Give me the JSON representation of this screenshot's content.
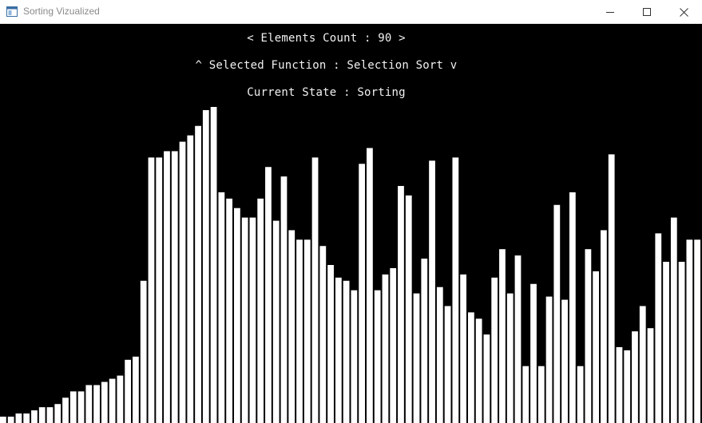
{
  "window": {
    "title": "Sorting Vizualized",
    "icon": "app-window-icon",
    "controls": [
      "minimize-icon",
      "maximize-icon",
      "close-icon"
    ]
  },
  "hud": {
    "elements_count": "< Elements Count : 90 >",
    "selected_function": "^ Selected Function : Selection Sort v",
    "current_state": "Current State : Sorting"
  },
  "colors": {
    "background": "#000000",
    "bar": "#ffffff",
    "text": "#f2f2f2"
  },
  "chart_data": {
    "type": "bar",
    "element_count": 90,
    "value_max": 100,
    "values": [
      2,
      2,
      3,
      3,
      4,
      5,
      5,
      6,
      8,
      10,
      10,
      12,
      12,
      13,
      14,
      15,
      20,
      21,
      45,
      84,
      84,
      86,
      86,
      89,
      91,
      94,
      99,
      100,
      73,
      71,
      68,
      65,
      65,
      71,
      81,
      64,
      78,
      61,
      58,
      58,
      84,
      56,
      50,
      46,
      45,
      42,
      82,
      87,
      42,
      47,
      49,
      75,
      72,
      41,
      52,
      83,
      43,
      37,
      84,
      47,
      35,
      33,
      28,
      46,
      55,
      41,
      53,
      18,
      44,
      18,
      40,
      69,
      39,
      73,
      18,
      55,
      48,
      61,
      85,
      24,
      23,
      29,
      37,
      30,
      60,
      51,
      65,
      51,
      58,
      58
    ],
    "selection_sort_sorted_prefix": 18
  }
}
